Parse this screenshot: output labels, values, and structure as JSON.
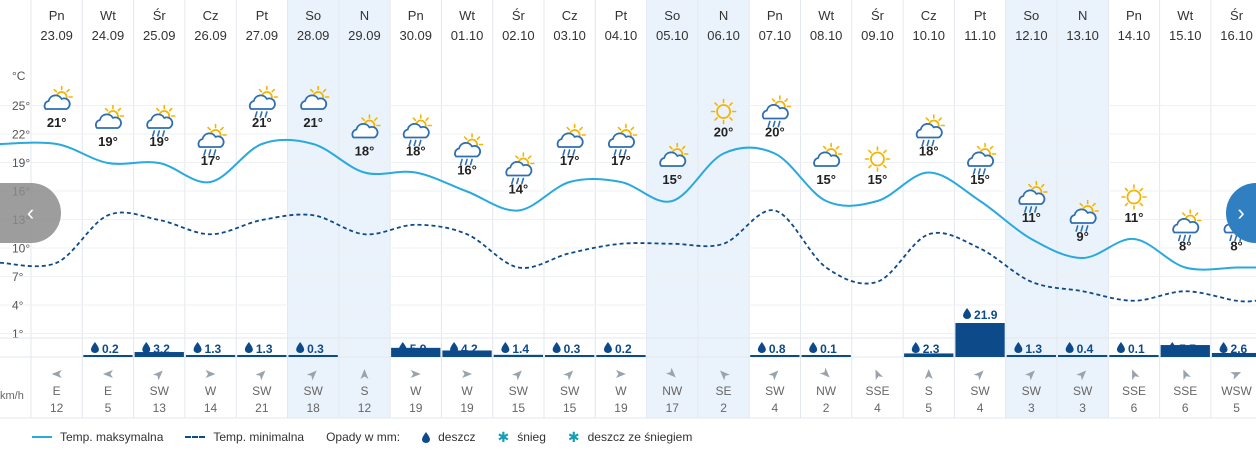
{
  "chart_data": {
    "type": "line",
    "ylabel_unit": "°C",
    "y_ticks": [
      "25°",
      "22°",
      "19°",
      "16°",
      "13°",
      "10°",
      "7°",
      "4°",
      "1°"
    ],
    "ylim": [
      1,
      28
    ],
    "days": [
      {
        "day": "Pn",
        "date": "23.09",
        "max": 21,
        "max_label": "21°",
        "min": 8.5,
        "icon": "cloud-sun-icon",
        "precip": 0,
        "precip_label": "",
        "wind_dir": "E",
        "wind_speed": "12",
        "weekend": false
      },
      {
        "day": "Wt",
        "date": "24.09",
        "max": 19,
        "max_label": "19°",
        "min": 13.5,
        "icon": "cloud-sun-icon",
        "precip": 0.2,
        "precip_label": "0.2",
        "wind_dir": "E",
        "wind_speed": "5",
        "weekend": false
      },
      {
        "day": "Śr",
        "date": "25.09",
        "max": 19,
        "max_label": "19°",
        "min": 13,
        "icon": "cloud-rain-sun-icon",
        "precip": 3.2,
        "precip_label": "3.2",
        "wind_dir": "SW",
        "wind_speed": "13",
        "weekend": false
      },
      {
        "day": "Cz",
        "date": "26.09",
        "max": 17,
        "max_label": "17°",
        "min": 11.5,
        "icon": "cloud-rain-sun-icon",
        "precip": 1.3,
        "precip_label": "1.3",
        "wind_dir": "W",
        "wind_speed": "14",
        "weekend": false
      },
      {
        "day": "Pt",
        "date": "27.09",
        "max": 21,
        "max_label": "21°",
        "min": 13,
        "icon": "cloud-rain-sun-icon",
        "precip": 1.3,
        "precip_label": "1.3",
        "wind_dir": "SW",
        "wind_speed": "21",
        "weekend": false
      },
      {
        "day": "So",
        "date": "28.09",
        "max": 21,
        "max_label": "21°",
        "min": 13.5,
        "icon": "cloud-sun-icon",
        "precip": 0.3,
        "precip_label": "0.3",
        "wind_dir": "SW",
        "wind_speed": "18",
        "weekend": true
      },
      {
        "day": "N",
        "date": "29.09",
        "max": 18,
        "max_label": "18°",
        "min": 11.5,
        "icon": "cloud-sun-icon",
        "precip": 0,
        "precip_label": "",
        "wind_dir": "S",
        "wind_speed": "12",
        "weekend": true
      },
      {
        "day": "Pn",
        "date": "30.09",
        "max": 18,
        "max_label": "18°",
        "min": 12.5,
        "icon": "cloud-rain-sun-icon",
        "precip": 5.9,
        "precip_label": "5.9",
        "wind_dir": "W",
        "wind_speed": "19",
        "weekend": false
      },
      {
        "day": "Wt",
        "date": "01.10",
        "max": 16,
        "max_label": "16°",
        "min": 11.5,
        "icon": "cloud-rain-sun-icon",
        "precip": 4.2,
        "precip_label": "4.2",
        "wind_dir": "W",
        "wind_speed": "19",
        "weekend": false
      },
      {
        "day": "Śr",
        "date": "02.10",
        "max": 14,
        "max_label": "14°",
        "min": 8,
        "icon": "cloud-rain-sun-icon",
        "precip": 1.4,
        "precip_label": "1.4",
        "wind_dir": "SW",
        "wind_speed": "15",
        "weekend": false
      },
      {
        "day": "Cz",
        "date": "03.10",
        "max": 17,
        "max_label": "17°",
        "min": 9.5,
        "icon": "cloud-rain-sun-icon",
        "precip": 0.3,
        "precip_label": "0.3",
        "wind_dir": "SW",
        "wind_speed": "15",
        "weekend": false
      },
      {
        "day": "Pt",
        "date": "04.10",
        "max": 17,
        "max_label": "17°",
        "min": 10.5,
        "icon": "cloud-rain-sun-icon",
        "precip": 0.2,
        "precip_label": "0.2",
        "wind_dir": "W",
        "wind_speed": "19",
        "weekend": false
      },
      {
        "day": "So",
        "date": "05.10",
        "max": 15,
        "max_label": "15°",
        "min": 10.5,
        "icon": "cloud-sun-icon",
        "precip": 0,
        "precip_label": "",
        "wind_dir": "NW",
        "wind_speed": "17",
        "weekend": true
      },
      {
        "day": "N",
        "date": "06.10",
        "max": 20,
        "max_label": "20°",
        "min": 10.5,
        "icon": "sun-icon",
        "precip": 0,
        "precip_label": "",
        "wind_dir": "SE",
        "wind_speed": "2",
        "weekend": true
      },
      {
        "day": "Pn",
        "date": "07.10",
        "max": 20,
        "max_label": "20°",
        "min": 14,
        "icon": "cloud-rain-sun-icon",
        "precip": 0.8,
        "precip_label": "0.8",
        "wind_dir": "SW",
        "wind_speed": "4",
        "weekend": false
      },
      {
        "day": "Wt",
        "date": "08.10",
        "max": 15,
        "max_label": "15°",
        "min": 8,
        "icon": "cloud-sun-icon",
        "precip": 0.1,
        "precip_label": "0.1",
        "wind_dir": "NW",
        "wind_speed": "2",
        "weekend": false
      },
      {
        "day": "Śr",
        "date": "09.10",
        "max": 15,
        "max_label": "15°",
        "min": 6.5,
        "icon": "sun-icon",
        "precip": 0,
        "precip_label": "",
        "wind_dir": "SSE",
        "wind_speed": "4",
        "weekend": false
      },
      {
        "day": "Cz",
        "date": "10.10",
        "max": 18,
        "max_label": "18°",
        "min": 11.5,
        "icon": "cloud-rain-sun-icon",
        "precip": 2.3,
        "precip_label": "2.3",
        "wind_dir": "S",
        "wind_speed": "5",
        "weekend": false
      },
      {
        "day": "Pt",
        "date": "11.10",
        "max": 15,
        "max_label": "15°",
        "min": 10,
        "icon": "cloud-rain-sun-icon",
        "precip": 21.9,
        "precip_label": "21.9",
        "wind_dir": "SW",
        "wind_speed": "4",
        "weekend": false
      },
      {
        "day": "So",
        "date": "12.10",
        "max": 11,
        "max_label": "11°",
        "min": 6.5,
        "icon": "cloud-rain-sun-icon",
        "precip": 1.3,
        "precip_label": "1.3",
        "wind_dir": "SW",
        "wind_speed": "3",
        "weekend": true
      },
      {
        "day": "N",
        "date": "13.10",
        "max": 9,
        "max_label": "9°",
        "min": 5.5,
        "icon": "cloud-rain-sun-icon",
        "precip": 0.4,
        "precip_label": "0.4",
        "wind_dir": "SW",
        "wind_speed": "3",
        "weekend": true
      },
      {
        "day": "Pn",
        "date": "14.10",
        "max": 11,
        "max_label": "11°",
        "min": 4.5,
        "icon": "sun-icon",
        "precip": 0.1,
        "precip_label": "0.1",
        "wind_dir": "SSE",
        "wind_speed": "6",
        "weekend": false
      },
      {
        "day": "Wt",
        "date": "15.10",
        "max": 8,
        "max_label": "8°",
        "min": 5.5,
        "icon": "cloud-rain-sun-icon",
        "precip": 7.7,
        "precip_label": "7.7",
        "wind_dir": "SSE",
        "wind_speed": "6",
        "weekend": false
      },
      {
        "day": "Śr",
        "date": "16.10",
        "max": 8,
        "max_label": "8°",
        "min": 4.5,
        "icon": "cloud-rain-sun-icon",
        "precip": 2.6,
        "precip_label": "2.6",
        "wind_dir": "WSW",
        "wind_speed": "5",
        "weekend": false
      }
    ],
    "wind_unit": "km/h",
    "legend": {
      "max_label": "Temp. maksymalna",
      "min_label": "Temp. minimalna",
      "precip_title": "Opady w mm:",
      "rain_label": "deszcz",
      "snow_label": "śnieg",
      "mixed_label": "deszcz ze śniegiem"
    },
    "colors": {
      "max_line": "#29a9e0",
      "min_line": "#0d4a8a",
      "precip_bar": "#0d4a8a",
      "weekend_bg": "#eaf3fb",
      "sun": "#f5b400",
      "cloud": "#2f6fb0"
    }
  },
  "nav": {
    "prev_icon": "chevron-left-icon",
    "next_icon": "chevron-right-icon"
  }
}
